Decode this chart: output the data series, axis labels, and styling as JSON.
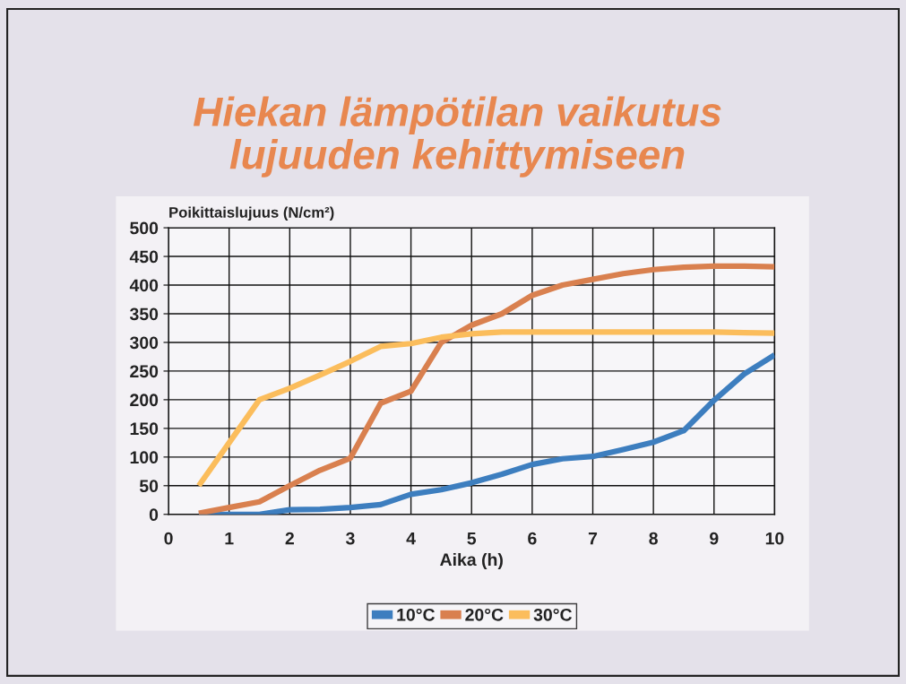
{
  "chart_data": {
    "type": "line",
    "title": "Hiekan lämpötilan vaikutus\nlujuuden kehittymiseen",
    "xlabel": "Aika (h)",
    "ylabel": "Poikittaislujuus (N/cm²)",
    "x": [
      0.5,
      1,
      1.5,
      2,
      2.5,
      3,
      3.5,
      4,
      4.5,
      5,
      5.5,
      6,
      6.5,
      7,
      7.5,
      8,
      8.5,
      9,
      9.5,
      10
    ],
    "series": [
      {
        "name": "10°C",
        "color": "#3d7ebf",
        "values": [
          0,
          0,
          0,
          8,
          9,
          12,
          17,
          35,
          43,
          55,
          70,
          87,
          97,
          101,
          113,
          126,
          146,
          199,
          245,
          278
        ]
      },
      {
        "name": "20°C",
        "color": "#d9804f",
        "values": [
          2,
          12,
          22,
          50,
          77,
          98,
          194,
          215,
          300,
          330,
          350,
          382,
          400,
          410,
          420,
          427,
          431,
          433,
          433,
          432
        ]
      },
      {
        "name": "30°C",
        "color": "#fbbd5c",
        "values": [
          50,
          125,
          200,
          220,
          243,
          267,
          293,
          298,
          309,
          315,
          318,
          318,
          318,
          318,
          318,
          318,
          318,
          318,
          317,
          316
        ]
      }
    ],
    "xlim": [
      0,
      10
    ],
    "xticks": [
      0,
      1,
      2,
      3,
      4,
      5,
      6,
      7,
      8,
      9,
      10
    ],
    "ylim": [
      0,
      500
    ],
    "yticks": [
      0,
      50,
      100,
      150,
      200,
      250,
      300,
      350,
      400,
      450,
      500
    ],
    "grid": true,
    "legend": "bottom",
    "line_style": "solid"
  }
}
